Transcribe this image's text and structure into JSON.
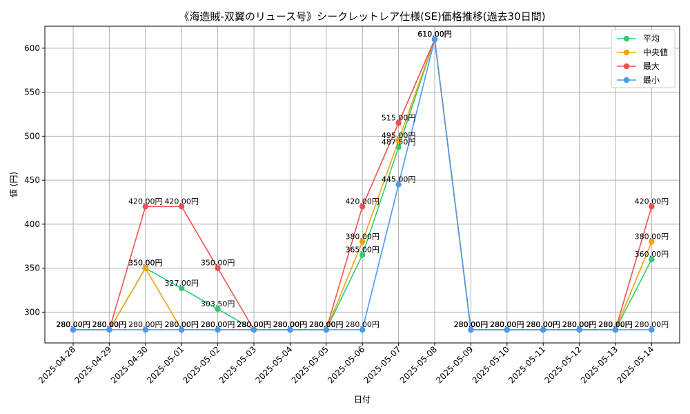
{
  "chart_data": {
    "type": "line",
    "title": "《海造賊-双翼のリュース号》シークレットレア仕様(SE)価格推移(過去30日間)",
    "xlabel": "日付",
    "ylabel": "値 (円)",
    "categories": [
      "2025-04-28",
      "2025-04-29",
      "2025-04-30",
      "2025-05-01",
      "2025-05-02",
      "2025-05-03",
      "2025-05-04",
      "2025-05-05",
      "2025-05-06",
      "2025-05-07",
      "2025-05-08",
      "2025-05-09",
      "2025-05-10",
      "2025-05-11",
      "2025-05-12",
      "2025-05-13",
      "2025-05-14"
    ],
    "yticks": [
      300,
      350,
      400,
      450,
      500,
      550,
      600
    ],
    "ylim": [
      265,
      625
    ],
    "grid": true,
    "legend_position": "top-right",
    "label_suffix": "円",
    "series": [
      {
        "name": "平均",
        "color": "#2ecc71",
        "values": [
          280,
          280,
          350,
          327,
          303.5,
          280,
          280,
          280,
          365,
          487.5,
          610,
          280,
          280,
          280,
          280,
          280,
          360
        ]
      },
      {
        "name": "中央値",
        "color": "#f1a20c",
        "values": [
          280,
          280,
          350,
          280,
          280,
          280,
          280,
          280,
          380,
          495,
          610,
          280,
          280,
          280,
          280,
          280,
          380
        ]
      },
      {
        "name": "最大",
        "color": "#f05050",
        "values": [
          280,
          280,
          420,
          420,
          350,
          280,
          280,
          280,
          420,
          515,
          610,
          280,
          280,
          280,
          280,
          280,
          420
        ]
      },
      {
        "name": "最小",
        "color": "#4a9af0",
        "values": [
          280,
          280,
          280,
          280,
          280,
          280,
          280,
          280,
          280,
          445,
          610,
          280,
          280,
          280,
          280,
          280,
          280
        ]
      }
    ]
  }
}
